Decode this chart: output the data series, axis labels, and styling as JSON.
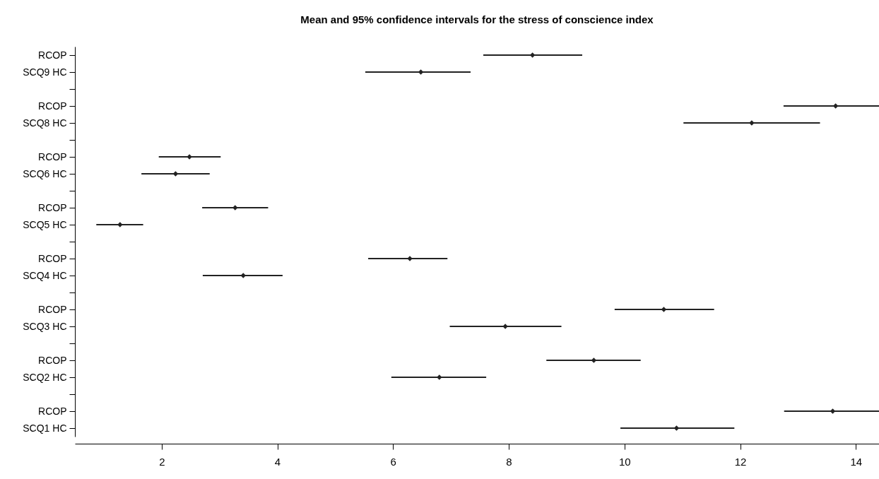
{
  "chart_data": {
    "type": "scatter",
    "title": "Mean and 95% confidence intervals for the stress of conscience index",
    "orientation": "horizontal",
    "categories": [
      "RCOP",
      "SCQ9 HC",
      null,
      "RCOP",
      "SCQ8 HC",
      null,
      "RCOP",
      "SCQ6 HC",
      null,
      "RCOP",
      "SCQ5 HC",
      null,
      "RCOP",
      "SCQ4 HC",
      null,
      "RCOP",
      "SCQ3 HC",
      null,
      "RCOP",
      "SCQ2 HC",
      null,
      "RCOP",
      "SCQ1 HC"
    ],
    "values": [
      8.41,
      6.48,
      null,
      13.65,
      12.2,
      null,
      2.48,
      2.24,
      null,
      3.27,
      1.28,
      null,
      6.29,
      3.41,
      null,
      10.68,
      7.94,
      null,
      9.47,
      6.8,
      null,
      13.6,
      10.9
    ],
    "errors": [
      [
        7.56,
        9.27
      ],
      [
        5.52,
        7.34
      ],
      null,
      [
        12.75,
        14.4
      ],
      [
        11.02,
        13.38
      ],
      null,
      [
        1.95,
        3.02
      ],
      [
        1.65,
        2.83
      ],
      null,
      [
        2.7,
        3.84
      ],
      [
        0.87,
        1.68
      ],
      null,
      [
        5.57,
        6.94
      ],
      [
        2.71,
        4.09
      ],
      null,
      [
        9.83,
        11.55
      ],
      [
        6.98,
        8.91
      ],
      null,
      [
        8.65,
        10.28
      ],
      [
        5.97,
        7.61
      ],
      null,
      [
        12.76,
        14.4
      ],
      [
        9.93,
        11.9
      ]
    ],
    "color": "#222222",
    "marker": "diamond",
    "xlim": [
      0.5,
      14.4
    ],
    "xticks": [
      2,
      4,
      6,
      8,
      10,
      12,
      14
    ],
    "grid": false
  }
}
